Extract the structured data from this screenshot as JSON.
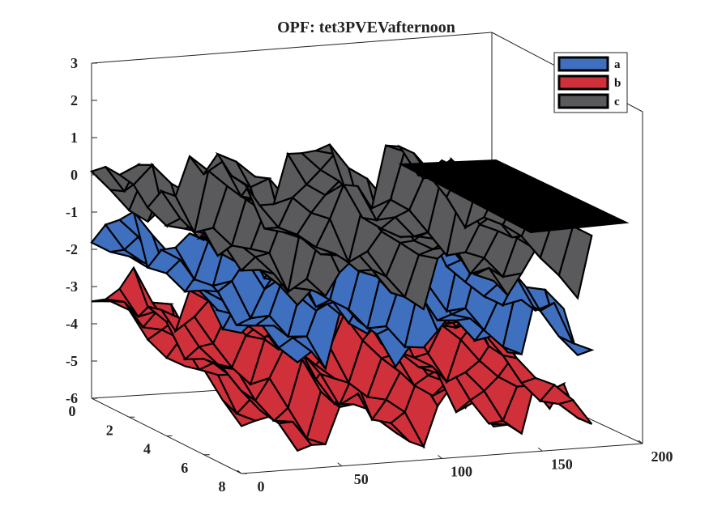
{
  "chart_data": {
    "type": "surface3d",
    "title": "OPF: tet3PVEVafternoon",
    "xlabel": "",
    "ylabel": "",
    "zlabel": "",
    "x_ticks": [
      "0",
      "50",
      "100",
      "150",
      "200"
    ],
    "y_ticks": [
      "0",
      "2",
      "4",
      "6",
      "8"
    ],
    "z_ticks": [
      "3",
      "2",
      "1",
      "0",
      "-1",
      "-2",
      "-3",
      "-4",
      "-5",
      "-6"
    ],
    "xlim": [
      0,
      200
    ],
    "ylim": [
      0,
      8
    ],
    "zlim": [
      -6,
      3
    ],
    "legend_position": "top-right",
    "series": [
      {
        "name": "a",
        "color": "#3f6fbf",
        "approx_level": -2.0
      },
      {
        "name": "b",
        "color": "#d0303a",
        "approx_level": -3.5
      },
      {
        "name": "c",
        "color": "#5a5a5c",
        "approx_level": -0.5
      }
    ]
  }
}
